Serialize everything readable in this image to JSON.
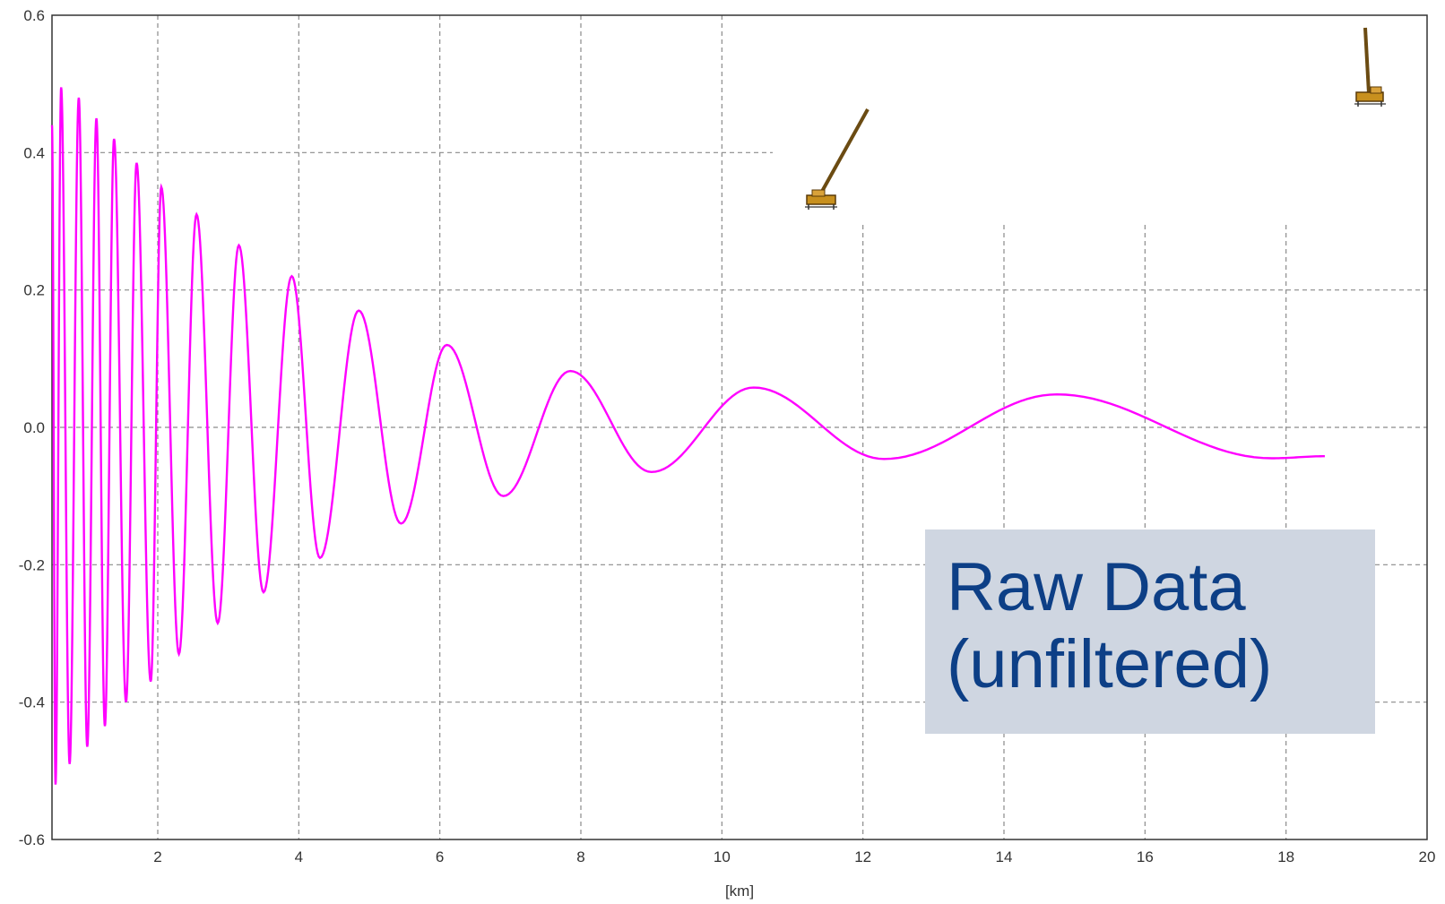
{
  "chart_data": {
    "type": "line",
    "title": "",
    "xlabel": "[km]",
    "ylabel": "",
    "xlim": [
      0.5,
      20
    ],
    "ylim": [
      -0.6,
      0.6
    ],
    "x_ticks": [
      2,
      4,
      6,
      8,
      10,
      12,
      14,
      16,
      18,
      20
    ],
    "x_tick_labels": [
      "2",
      "4",
      "6",
      "8",
      "10",
      "12",
      "14",
      "16",
      "18",
      "20"
    ],
    "y_ticks": [
      -0.6,
      -0.4,
      -0.2,
      0.0,
      0.2,
      0.4,
      0.6
    ],
    "y_tick_labels": [
      "-0.6",
      "-0.4",
      "-0.2",
      "0.0",
      "0.2",
      "0.4",
      "0.6"
    ],
    "grid": true,
    "series": [
      {
        "color": "#ff00ff",
        "description": "decaying oscillation; local extrema (x km, y)",
        "points": [
          [
            0.5,
            0.44
          ],
          [
            0.55,
            -0.52
          ],
          [
            0.63,
            0.495
          ],
          [
            0.75,
            -0.49
          ],
          [
            0.88,
            0.48
          ],
          [
            1.0,
            -0.465
          ],
          [
            1.13,
            0.45
          ],
          [
            1.25,
            -0.435
          ],
          [
            1.38,
            0.42
          ],
          [
            1.55,
            -0.4
          ],
          [
            1.7,
            0.385
          ],
          [
            1.9,
            -0.37
          ],
          [
            2.05,
            0.35
          ],
          [
            2.3,
            -0.33
          ],
          [
            2.55,
            0.31
          ],
          [
            2.85,
            -0.285
          ],
          [
            3.15,
            0.265
          ],
          [
            3.5,
            -0.24
          ],
          [
            3.9,
            0.22
          ],
          [
            4.3,
            -0.19
          ],
          [
            4.85,
            0.17
          ],
          [
            5.45,
            -0.14
          ],
          [
            6.1,
            0.12
          ],
          [
            6.9,
            -0.1
          ],
          [
            7.85,
            0.082
          ],
          [
            9.0,
            -0.065
          ],
          [
            10.45,
            0.058
          ],
          [
            12.3,
            -0.046
          ],
          [
            14.75,
            0.048
          ],
          [
            17.8,
            -0.045
          ],
          [
            18.55,
            -0.042
          ]
        ]
      }
    ]
  },
  "callout": {
    "line1": "Raw Data",
    "line2": "(unfiltered)",
    "background": "#cfd6e1",
    "text_color": "#0d3f86"
  },
  "icons": [
    "crane-icon",
    "crane-icon"
  ]
}
